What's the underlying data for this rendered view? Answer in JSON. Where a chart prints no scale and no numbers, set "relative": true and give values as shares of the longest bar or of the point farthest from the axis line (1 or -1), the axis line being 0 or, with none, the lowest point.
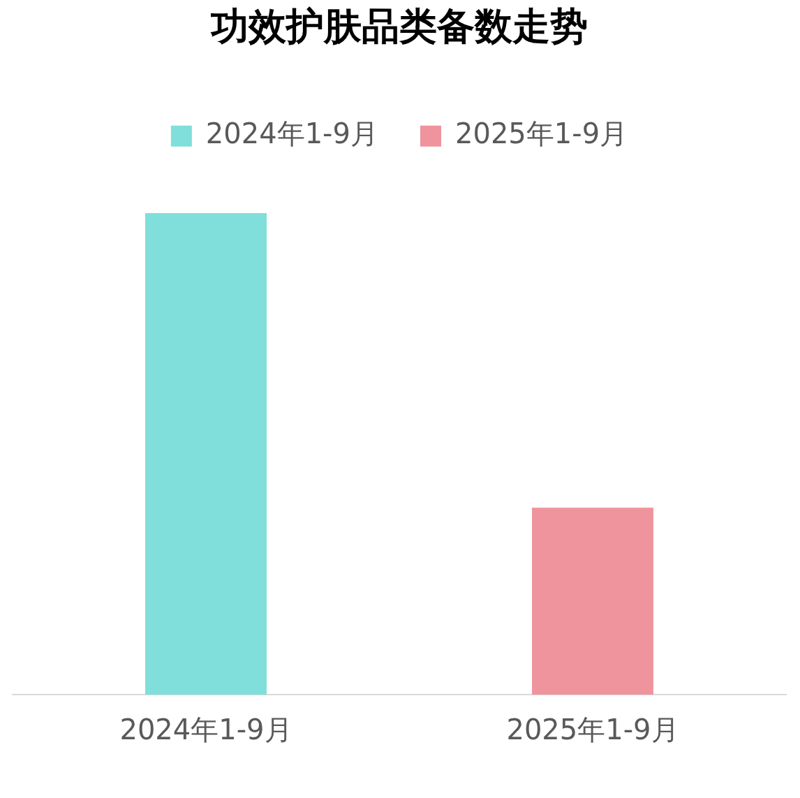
{
  "chart_data": {
    "type": "bar",
    "title": "功效护肤品类备数走势",
    "categories": [
      "2024年1-9月",
      "2025年1-9月"
    ],
    "relative": true,
    "legend": "top",
    "grid": false,
    "series": [
      {
        "name": "2024年1-9月",
        "color": "#80dfda",
        "values": [
          1,
          null
        ]
      },
      {
        "name": "2025年1-9月",
        "color": "#ef949d",
        "values": [
          null,
          0.388
        ]
      }
    ]
  }
}
